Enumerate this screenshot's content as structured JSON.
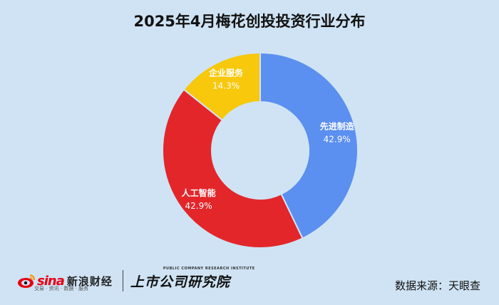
{
  "title": "2025年4月梅花创投投资行业分布",
  "chart_data": {
    "type": "pie",
    "donut": true,
    "title": "2025年4月梅花创投投资行业分布",
    "slices": [
      {
        "name": "先进制造",
        "value": 42.9,
        "label": "42.9%",
        "color": "#5b8ff0"
      },
      {
        "name": "人工智能",
        "value": 42.9,
        "label": "42.9%",
        "color": "#e3262a"
      },
      {
        "name": "企业服务",
        "value": 14.3,
        "label": "14.3%",
        "color": "#f7c80c"
      }
    ]
  },
  "footer": {
    "sina_brand": "sina",
    "sina_name": "新浪财经",
    "sina_tagline": "交易 · 资讯 · 数据 · 服务",
    "research_name": "上市公司研究院",
    "research_en": "PUBLIC COMPANY RESEARCH INSTITUTE",
    "source": "数据来源：天眼查"
  }
}
